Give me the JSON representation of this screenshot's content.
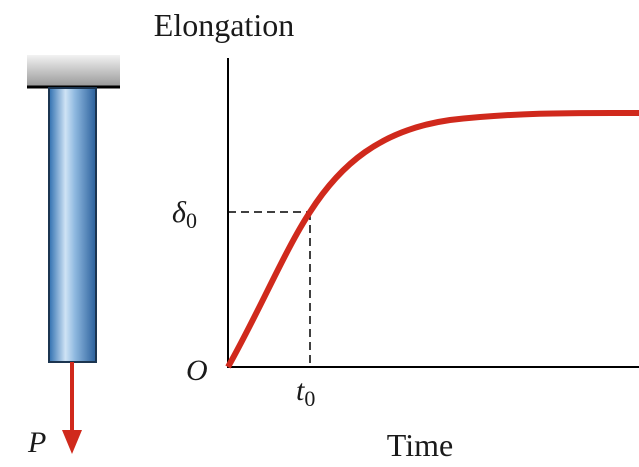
{
  "axes": {
    "y_label": "Elongation",
    "x_label": "Time",
    "origin": "O"
  },
  "markers": {
    "delta": {
      "symbol": "δ",
      "subscript": "0"
    },
    "t": {
      "symbol": "t",
      "subscript": "0"
    }
  },
  "load": {
    "label": "P"
  }
}
